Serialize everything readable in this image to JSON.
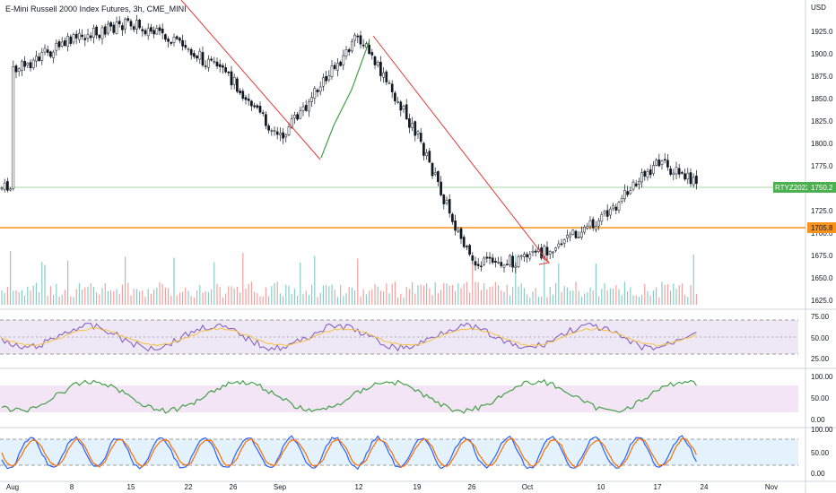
{
  "header": {
    "title": "E-Mini Russell 2000 Index Futures, 3h, CME_MINI"
  },
  "colors": {
    "up": "#26a69a",
    "down": "#ef5350",
    "horizontal_line": "#f7931a",
    "trendline": "#e53935",
    "rsi_line": "#7e57c2",
    "rsi_ma": "#f5c242",
    "rsi_bg": "#ede7f6",
    "green_osc": "#43a047",
    "osc_bg": "#f3e5f5",
    "stoch_k": "#2962ff",
    "stoch_d": "#ff6d00",
    "stoch_bg": "#e3f2fd",
    "ticker_tag": "#4caf50",
    "level_tag": "#f7931a"
  },
  "price_axis": {
    "unit": "USD",
    "ticks": [
      "1925.0",
      "1900.0",
      "1875.0",
      "1850.0",
      "1825.0",
      "1800.0",
      "1775.0",
      "1725.0",
      "1700.0",
      "1675.0",
      "1650.0",
      "1625.0"
    ]
  },
  "tags": {
    "ticker_label": "RTYZ2022",
    "last_price": "1750.2",
    "level_price": "1705.8"
  },
  "rsi_pane": {
    "ticks": [
      "75.00",
      "50.00",
      "25.00"
    ]
  },
  "osc_pane": {
    "ticks": [
      "100.00",
      "50.00",
      "0.00"
    ]
  },
  "stoch_pane": {
    "ticks": [
      "100.00",
      "50.00",
      "0.00"
    ]
  },
  "time_axis": {
    "labels": [
      "Aug",
      "8",
      "15",
      "22",
      "26",
      "Sep",
      "12",
      "19",
      "26",
      "Oct",
      "10",
      "17",
      "24",
      "Nov"
    ]
  },
  "chart_data": {
    "type": "candlestick",
    "symbol": "RTYZ2022",
    "interval": "3h",
    "last": 1750.2,
    "horizontal_level": 1705.8,
    "y_range": [
      1615,
      1945
    ],
    "price_path": [
      [
        "Aug",
        1880
      ],
      [
        "8",
        1915
      ],
      [
        "15",
        1935
      ],
      [
        "22",
        1905
      ],
      [
        "26",
        1870
      ],
      [
        "Sep",
        1805
      ],
      [
        "12",
        1920
      ],
      [
        "19",
        1810
      ],
      [
        "26",
        1665
      ],
      [
        "Oct",
        1670
      ],
      [
        "10",
        1715
      ],
      [
        "17",
        1780
      ],
      [
        "24",
        1750
      ]
    ],
    "trendlines": [
      {
        "from": [
          "Aug",
          1945
        ],
        "to": [
          "Sep",
          1780
        ]
      },
      {
        "from": [
          "12",
          1920
        ],
        "to": [
          "Oct",
          1670
        ]
      }
    ]
  }
}
